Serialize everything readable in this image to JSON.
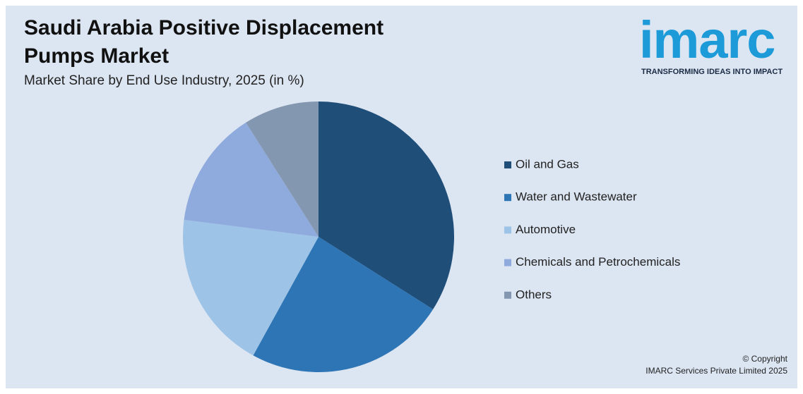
{
  "chart_data": {
    "type": "pie",
    "title": "Saudi Arabia Positive Displacement Pumps Market",
    "subtitle": "Market Share by End Use Industry, 2025 (in %)",
    "categories": [
      "Oil and Gas",
      "Water and Wastewater",
      "Automotive",
      "Chemicals and Petrochemicals",
      "Others"
    ],
    "values": [
      34,
      24,
      19,
      14,
      9
    ],
    "colors": [
      "#1f4e79",
      "#2e75b6",
      "#9dc3e6",
      "#8faadc",
      "#8497b0"
    ]
  },
  "logo": {
    "name": "imarc",
    "tagline": "TRANSFORMING IDEAS INTO IMPACT"
  },
  "copyright": [
    "© Copyright",
    "IMARC Services Private Limited 2025"
  ]
}
